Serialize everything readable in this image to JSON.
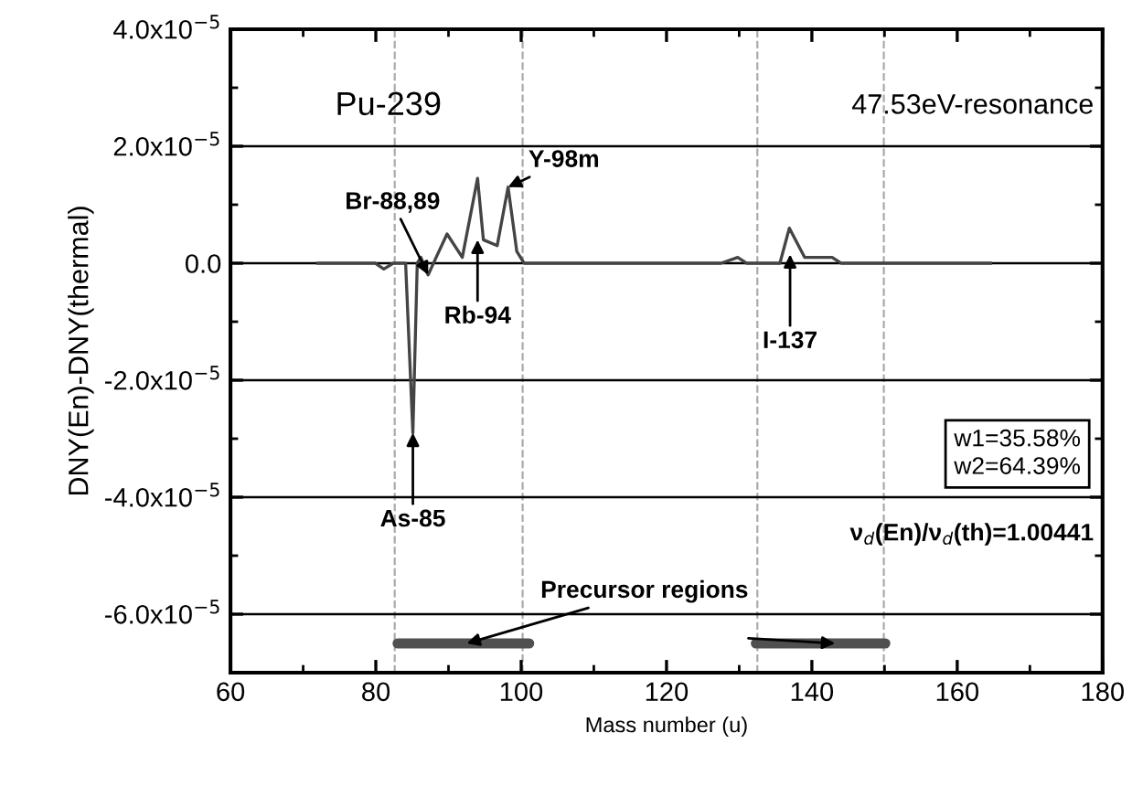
{
  "chart_data": {
    "type": "line",
    "xlabel": "Mass number (u)",
    "ylabel": "DNY(En)-DNY(thermal)",
    "xlim": [
      60,
      180
    ],
    "xticks": [
      60,
      {
        "value": 70,
        "label": null
      },
      80,
      {
        "value": 90,
        "label": null
      },
      100,
      {
        "value": 110,
        "label": null
      },
      120,
      {
        "value": 130,
        "label": null
      },
      140,
      {
        "value": 150,
        "label": null
      },
      160,
      {
        "value": 170,
        "label": null
      },
      180
    ],
    "ylim": [
      -7e-05,
      4e-05
    ],
    "yticks": [
      {
        "value": -6e-05,
        "label": "-6.0x10$^{−5}$"
      },
      {
        "value": -5e-05,
        "label": null
      },
      {
        "value": -4e-05,
        "label": "-4.0x10$^{−5}$"
      },
      {
        "value": -3e-05,
        "label": null
      },
      {
        "value": -2e-05,
        "label": "-2.0x10$^{−5}$"
      },
      {
        "value": -1e-05,
        "label": null
      },
      {
        "value": 0,
        "label": "0.0"
      },
      {
        "value": 1e-05,
        "label": null
      },
      {
        "value": 2e-05,
        "label": "2.0x10$^{−5}$"
      },
      {
        "value": 3e-05,
        "label": null
      },
      {
        "value": 4e-05,
        "label": "4.0x10$^{−5}$"
      }
    ],
    "grid": "y",
    "marker": "none",
    "line_style": "solid",
    "series": [
      {
        "color": "#444444",
        "x": [
          71.8,
          79.9,
          81.1,
          82.4,
          84.1,
          85.1,
          85.7,
          86.2,
          87.2,
          88.3,
          89.8,
          91.9,
          94.0,
          94.8,
          96.7,
          98.2,
          99.4,
          100.4,
          102,
          110,
          120,
          127.5,
          129.8,
          131,
          135.6,
          136.9,
          139.0,
          140.6,
          142.8,
          144,
          150,
          164.8
        ],
        "values": [
          0,
          0,
          -1e-06,
          0,
          0,
          -2.9e-05,
          0,
          1e-06,
          -2e-06,
          1e-06,
          5e-06,
          1e-06,
          1.45e-05,
          4e-06,
          3e-06,
          1.3e-05,
          2e-06,
          0,
          0,
          0,
          0,
          0,
          1e-06,
          0,
          0,
          6e-06,
          1e-06,
          1e-06,
          1e-06,
          0,
          0,
          0
        ]
      },
      {
        "color": "#505050",
        "x": [
          83.0,
          101.1
        ],
        "values": [
          -6.5e-05,
          -6.5e-05
        ]
      },
      {
        "color": "#505050",
        "x": [
          132.3,
          150.1
        ],
        "values": [
          -6.5e-05,
          -6.5e-05
        ]
      }
    ],
    "ref_lines": [
      {
        "axis": "x",
        "value": 82.6,
        "color": "#aaaaaa",
        "line_style": "dashed"
      },
      {
        "axis": "x",
        "value": 100.2,
        "color": "#aaaaaa",
        "line_style": "dashed"
      },
      {
        "axis": "x",
        "value": 132.5,
        "color": "#aaaaaa",
        "line_style": "dashed"
      },
      {
        "axis": "x",
        "value": 149.9,
        "color": "#aaaaaa",
        "line_style": "dashed"
      }
    ],
    "annotations": [
      "Pu-239",
      "47.53eV-resonance",
      {
        "text": "Br-88,89",
        "x": 87.2,
        "y": -2e-06
      },
      {
        "text": "Rb-94",
        "x": 94.0,
        "y": 4e-06
      },
      {
        "text": "Y-98m",
        "x": 98.2,
        "y": 1.3e-05
      },
      {
        "text": "As-85",
        "x": 85.1,
        "y": -2.9e-05
      },
      {
        "text": "I-137",
        "x": 137.0,
        "y": 1.5e-06
      },
      "w1=35.58%\nw2=64.39%",
      "ν$_{d}$(En)/ν$_{d}$(th)=1.00441",
      {
        "text": "Precursor regions",
        "x": 92.5,
        "y": -6.5e-05
      }
    ]
  }
}
